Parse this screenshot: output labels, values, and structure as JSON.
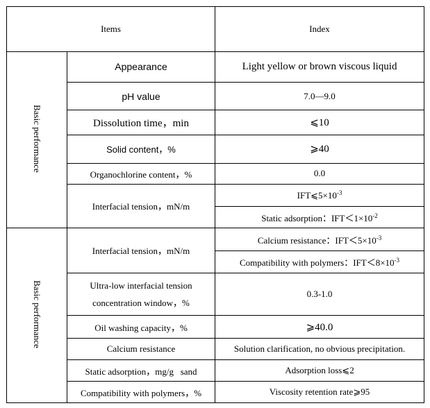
{
  "header": {
    "items": "Items",
    "index": "Index"
  },
  "groups": [
    {
      "label": "Basic performance",
      "rows": [
        {
          "item": "Appearance",
          "index": "Light yellow or brown viscous liquid"
        },
        {
          "item": "pH value",
          "index": "7.0—9.0"
        },
        {
          "item": "Dissolution time，min",
          "index": "⩽10"
        },
        {
          "item": "Solid content，%",
          "index": "⩾40"
        },
        {
          "item": "Organochlorine content，%",
          "index": "0.0"
        },
        {
          "item": "Interfacial tension，mN/m",
          "index_1_text": "IFT⩽5×10",
          "index_1_exp": "-3",
          "index_2_text": "Static adsorption：IFT＜1×10",
          "index_2_exp": "-2"
        }
      ]
    },
    {
      "label": "Basic performance",
      "rows": [
        {
          "item": "Interfacial tension，mN/m",
          "index_1_text": "Calcium resistance：IFT＜5×10",
          "index_1_exp": "-3",
          "index_2_text": "Compatibility with polymers：IFT＜8×10",
          "index_2_exp": "-3"
        },
        {
          "item_line1": "Ultra-low interfacial tension",
          "item_line2": "concentration window，%",
          "index": "0.3-1.0"
        },
        {
          "item": "Oil washing capacity，%",
          "index": "⩾40.0"
        },
        {
          "item": "Calcium resistance",
          "index": "Solution clarification, no obvious precipitation."
        },
        {
          "item": "Static adsorption，mg/g   sand",
          "index": "Adsorption loss⩽2"
        },
        {
          "item": "Compatibility with polymers，%",
          "index": "Viscosity retention rate⩾95"
        }
      ]
    }
  ]
}
